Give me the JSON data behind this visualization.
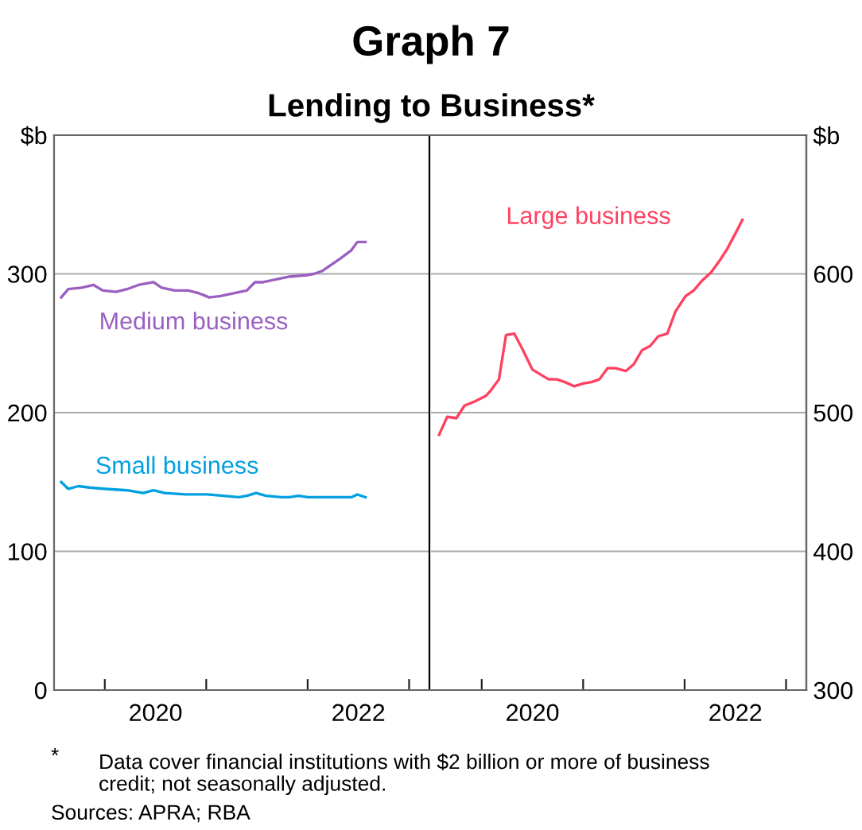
{
  "chart_data": [
    {
      "type": "line",
      "title": "Graph 7",
      "subtitle": "Lending to Business*",
      "annotations": [
        "*",
        "Data cover financial institutions with $2 billion or more of business\ncredit; not seasonally adjusted.",
        "Sources: APRA; RBA"
      ],
      "xlim": [
        2019.5,
        2023.2
      ],
      "xticks": [
        {
          "value": 2020,
          "label": null
        },
        {
          "value": 2021,
          "label": null
        },
        {
          "value": 2022,
          "label": null
        },
        {
          "value": 2023,
          "label": null
        },
        {
          "value": 2020.5,
          "label": "2020"
        },
        {
          "value": 2022.5,
          "label": "2022"
        }
      ],
      "ylim": [
        0,
        400
      ],
      "yticks": [
        0,
        100,
        200,
        300,
        {
          "value": 400,
          "label": "$b"
        }
      ],
      "grid": "y",
      "series": [
        {
          "name": "Medium business",
          "color": "#9b5fc0",
          "x": [
            2019.57,
            2019.64,
            2019.77,
            2019.89,
            2019.98,
            2020.11,
            2020.22,
            2020.33,
            2020.48,
            2020.56,
            2020.69,
            2020.82,
            2020.93,
            2021.03,
            2021.14,
            2021.27,
            2021.4,
            2021.48,
            2021.56,
            2021.69,
            2021.82,
            2021.98,
            2022.06,
            2022.14,
            2022.24,
            2022.32,
            2022.43,
            2022.49,
            2022.57
          ],
          "values": [
            283,
            289,
            290,
            292,
            288,
            287,
            289,
            292,
            294,
            290,
            288,
            288,
            286,
            283,
            284,
            286,
            288,
            294,
            294,
            296,
            298,
            299,
            300,
            302,
            307,
            311,
            317,
            323,
            323
          ]
        },
        {
          "name": "Small business",
          "color": "#00a0e0",
          "x": [
            2019.57,
            2019.64,
            2019.74,
            2019.85,
            2020.01,
            2020.22,
            2020.38,
            2020.48,
            2020.59,
            2020.8,
            2021.01,
            2021.17,
            2021.32,
            2021.4,
            2021.49,
            2021.59,
            2021.74,
            2021.82,
            2021.91,
            2022.0,
            2022.16,
            2022.32,
            2022.43,
            2022.49,
            2022.57
          ],
          "values": [
            150,
            145,
            147,
            146,
            145,
            144,
            142,
            144,
            142,
            141,
            141,
            140,
            139,
            140,
            142,
            140,
            139,
            139,
            140,
            139,
            139,
            139,
            139,
            141,
            139
          ]
        }
      ]
    },
    {
      "type": "line",
      "xlim": [
        2019.5,
        2023.2
      ],
      "xticks": [
        {
          "value": 2020,
          "label": null
        },
        {
          "value": 2021,
          "label": null
        },
        {
          "value": 2022,
          "label": null
        },
        {
          "value": 2023,
          "label": null
        },
        {
          "value": 2020.5,
          "label": "2020"
        },
        {
          "value": 2022.5,
          "label": "2022"
        }
      ],
      "y2lim": [
        300,
        700
      ],
      "y2ticks": [
        300,
        400,
        500,
        600,
        {
          "value": 700,
          "label": "$b"
        }
      ],
      "grid": "y",
      "series": [
        {
          "name": "Large business",
          "color": "#ff4060",
          "axis": "y2",
          "x": [
            2019.58,
            2019.66,
            2019.75,
            2019.83,
            2019.93,
            2020.04,
            2020.09,
            2020.17,
            2020.24,
            2020.32,
            2020.4,
            2020.5,
            2020.59,
            2020.66,
            2020.74,
            2020.82,
            2020.91,
            2021.0,
            2021.08,
            2021.16,
            2021.24,
            2021.32,
            2021.42,
            2021.5,
            2021.58,
            2021.66,
            2021.74,
            2021.83,
            2021.91,
            2022.01,
            2022.09,
            2022.17,
            2022.26,
            2022.34,
            2022.42,
            2022.5,
            2022.57
          ],
          "values": [
            484,
            497,
            496,
            505,
            508,
            512,
            516,
            524,
            556,
            557,
            546,
            531,
            527,
            524,
            524,
            522,
            519,
            521,
            522,
            524,
            532,
            532,
            530,
            535,
            545,
            548,
            555,
            557,
            573,
            584,
            588,
            595,
            601,
            609,
            618,
            629,
            639
          ]
        }
      ]
    }
  ]
}
